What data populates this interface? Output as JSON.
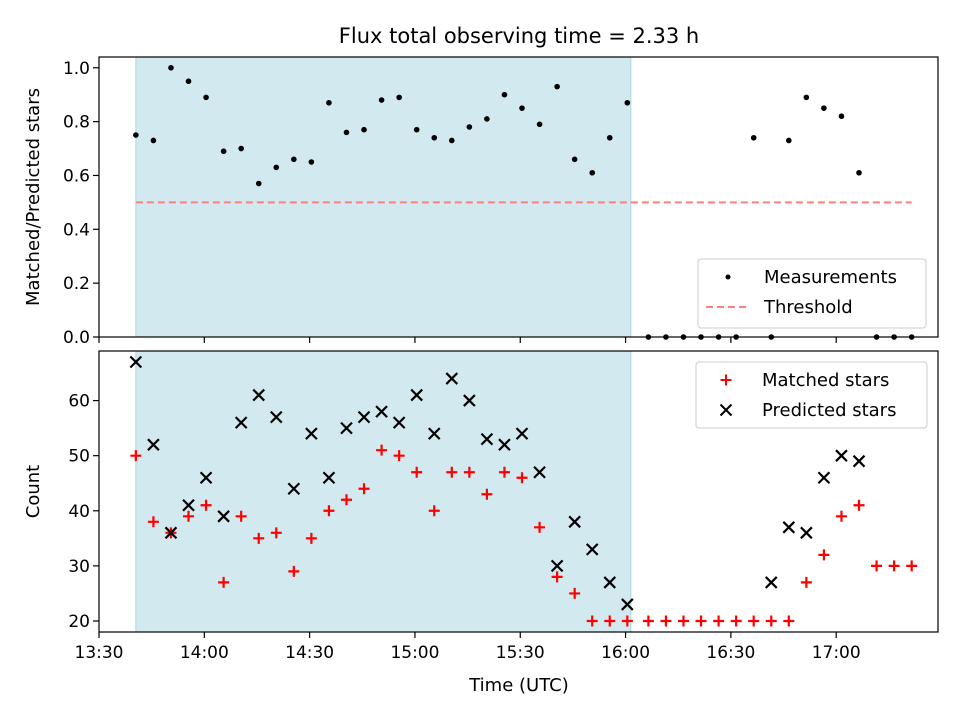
{
  "figure": {
    "title": "Flux total observing time = 2.33 h",
    "xlabel": "Time (UTC)"
  },
  "chart_data": [
    {
      "type": "scatter",
      "name": "ratio-panel",
      "ylabel": "Matched/Predicted stars",
      "xlim_minutes": [
        810,
        1049
      ],
      "ylim": [
        0,
        1.04
      ],
      "yticks": [
        0.0,
        0.2,
        0.4,
        0.6,
        0.8,
        1.0
      ],
      "ytick_labels": [
        "0.0",
        "0.2",
        "0.4",
        "0.6",
        "0.8",
        "1.0"
      ],
      "observing_window_minutes": [
        820.5,
        961.5
      ],
      "threshold": {
        "name": "Threshold",
        "value": 0.5,
        "x_range_minutes": [
          820.5,
          1041.5
        ],
        "color": "#ff7f7f",
        "style": "dashed"
      },
      "legend": {
        "position": "lower-right",
        "entries": [
          "Measurements",
          "Threshold"
        ]
      },
      "series": [
        {
          "name": "Measurements",
          "marker": "dot",
          "color": "#000000",
          "x_minutes": [
            820.5,
            825.5,
            830.5,
            835.5,
            840.5,
            845.5,
            850.5,
            855.5,
            860.5,
            865.5,
            870.5,
            875.5,
            880.5,
            885.5,
            890.5,
            895.5,
            900.5,
            905.5,
            910.5,
            915.5,
            920.5,
            925.5,
            930.5,
            935.5,
            940.5,
            945.5,
            950.5,
            955.5,
            960.5,
            966.5,
            971.5,
            976.5,
            981.5,
            986.5,
            991.5,
            996.5,
            1001.5,
            1006.5,
            1011.5,
            1016.5,
            1021.5,
            1026.5,
            1031.5,
            1036.5,
            1041.5
          ],
          "y": [
            0.75,
            0.73,
            1.0,
            0.95,
            0.89,
            0.69,
            0.7,
            0.57,
            0.63,
            0.66,
            0.65,
            0.87,
            0.76,
            0.77,
            0.88,
            0.89,
            0.77,
            0.74,
            0.73,
            0.78,
            0.81,
            0.9,
            0.85,
            0.79,
            0.93,
            0.66,
            0.61,
            0.74,
            0.87,
            0.0,
            0.0,
            0.0,
            0.0,
            0.0,
            0.0,
            0.74,
            0.0,
            0.73,
            0.89,
            0.85,
            0.82,
            0.61,
            0.0,
            0.0,
            0.0
          ]
        }
      ]
    },
    {
      "type": "scatter",
      "name": "count-panel",
      "ylabel": "Count",
      "xlim_minutes": [
        810,
        1049
      ],
      "ylim": [
        18,
        69
      ],
      "yticks": [
        20,
        30,
        40,
        50,
        60
      ],
      "ytick_labels": [
        "20",
        "30",
        "40",
        "50",
        "60"
      ],
      "xticks_minutes": [
        810,
        840,
        870,
        900,
        930,
        960,
        990,
        1020
      ],
      "xtick_labels": [
        "13:30",
        "14:00",
        "14:30",
        "15:00",
        "15:30",
        "16:00",
        "16:30",
        "17:00"
      ],
      "observing_window_minutes": [
        820.5,
        961.5
      ],
      "legend": {
        "position": "top-right",
        "entries": [
          "Matched stars",
          "Predicted stars"
        ]
      },
      "series": [
        {
          "name": "Matched stars",
          "marker": "plus",
          "color": "#ff0000",
          "x_minutes": [
            820.5,
            825.5,
            830.5,
            835.5,
            840.5,
            845.5,
            850.5,
            855.5,
            860.5,
            865.5,
            870.5,
            875.5,
            880.5,
            885.5,
            890.5,
            895.5,
            900.5,
            905.5,
            910.5,
            915.5,
            920.5,
            925.5,
            930.5,
            935.5,
            940.5,
            945.5,
            950.5,
            955.5,
            960.5,
            966.5,
            971.5,
            976.5,
            981.5,
            986.5,
            991.5,
            996.5,
            1001.5,
            1006.5,
            1011.5,
            1016.5,
            1021.5,
            1026.5,
            1031.5,
            1036.5,
            1041.5
          ],
          "y": [
            50,
            38,
            36,
            39,
            41,
            27,
            39,
            35,
            36,
            29,
            35,
            40,
            42,
            44,
            51,
            50,
            47,
            40,
            47,
            47,
            43,
            47,
            46,
            37,
            28,
            25,
            20,
            20,
            20,
            20,
            20,
            20,
            20,
            20,
            20,
            20,
            20,
            20,
            27,
            32,
            39,
            41,
            30,
            30,
            30
          ]
        },
        {
          "name": "Predicted stars",
          "marker": "x",
          "color": "#000000",
          "x_minutes": [
            820.5,
            825.5,
            830.5,
            835.5,
            840.5,
            845.5,
            850.5,
            855.5,
            860.5,
            865.5,
            870.5,
            875.5,
            880.5,
            885.5,
            890.5,
            895.5,
            900.5,
            905.5,
            910.5,
            915.5,
            920.5,
            925.5,
            930.5,
            935.5,
            940.5,
            945.5,
            950.5,
            955.5,
            960.5,
            1001.5,
            1006.5,
            1011.5,
            1016.5,
            1021.5,
            1026.5
          ],
          "y": [
            67,
            52,
            36,
            41,
            46,
            39,
            56,
            61,
            57,
            44,
            54,
            46,
            55,
            57,
            58,
            56,
            61,
            54,
            64,
            60,
            53,
            52,
            54,
            47,
            30,
            38,
            33,
            27,
            23,
            27,
            37,
            36,
            46,
            50,
            49
          ]
        }
      ]
    }
  ],
  "colors": {
    "window_fill": "#d3e9f0",
    "window_edge": "#a9d6e0"
  }
}
